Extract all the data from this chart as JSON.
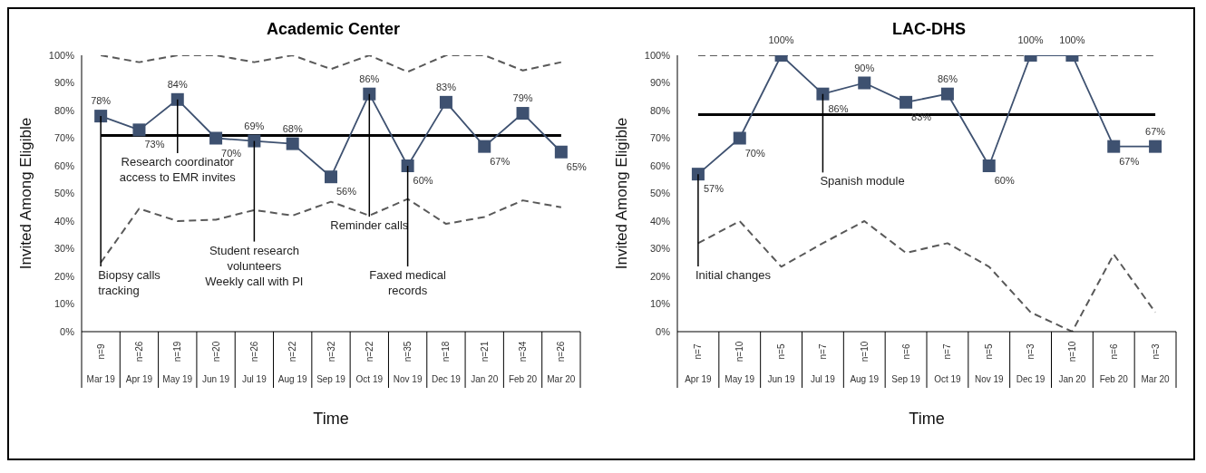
{
  "chart_data": [
    {
      "type": "line",
      "title": "Academic Center",
      "xlabel": "Time",
      "ylabel": "Invited Among Eligible",
      "categories": [
        "n=9\nMar 19",
        "n=26\nApr 19",
        "n=19\nMay 19",
        "n=20\nJun 19",
        "n=26\nJul 19",
        "n=22\nAug 19",
        "n=32\nSep 19",
        "n=22\nOct 19",
        "n=35\nNov 19",
        "n=18\nDec 19",
        "n=21\nJan 20",
        "n=34\nFeb 20",
        "n=26\nMar 20"
      ],
      "series": [
        {
          "color": "#3e5170",
          "marker": "square",
          "line_style": "solid",
          "values": [
            78,
            73,
            84,
            70,
            69,
            68,
            56,
            86,
            60,
            83,
            67,
            79,
            65
          ],
          "value_labels": [
            "78%",
            "73%",
            "84%",
            "70%",
            "69%",
            "68%",
            "56%",
            "86%",
            "60%",
            "83%",
            "67%",
            "79%",
            "65%"
          ]
        },
        {
          "color": "#595959",
          "marker": "none",
          "line_style": "dashed",
          "values": [
            100,
            97.5,
            100,
            100,
            97.5,
            100,
            95,
            100,
            94,
            100,
            100,
            94.5,
            97.5
          ]
        },
        {
          "color": "#595959",
          "marker": "none",
          "line_style": "dashed",
          "values": [
            25,
            44.5,
            40,
            40.5,
            44,
            42,
            47,
            42,
            48,
            39,
            41.5,
            47.5,
            45
          ]
        }
      ],
      "ref_lines": [
        {
          "axis": "y",
          "value": 71,
          "color": "#000000"
        }
      ],
      "ylim": [
        0,
        100
      ],
      "yticks": [
        {
          "value": 0,
          "label": "0%"
        },
        {
          "value": 10,
          "label": "10%"
        },
        {
          "value": 20,
          "label": "20%"
        },
        {
          "value": 30,
          "label": "30%"
        },
        {
          "value": 40,
          "label": "40%"
        },
        {
          "value": 50,
          "label": "50%"
        },
        {
          "value": 60,
          "label": "60%"
        },
        {
          "value": 70,
          "label": "70%"
        },
        {
          "value": 80,
          "label": "80%"
        },
        {
          "value": 90,
          "label": "90%"
        },
        {
          "value": 100,
          "label": "100%"
        }
      ],
      "annotations": [
        {
          "text": "Biopsy calls\ntracking",
          "x": "n=9\nMar 19",
          "y": 78
        },
        {
          "text": "Research coordinator\naccess to EMR invites",
          "x": "n=19\nMay 19",
          "y": 84
        },
        {
          "text": "Student research\nvolunteers\nWeekly call with PI",
          "x": "n=26\nJul 19",
          "y": 69
        },
        {
          "text": "Reminder calls",
          "x": "n=22\nOct 19",
          "y": 86
        },
        {
          "text": "Faxed medical\nrecords",
          "x": "n=35\nNov 19",
          "y": 60
        }
      ]
    },
    {
      "type": "line",
      "title": "LAC-DHS",
      "xlabel": "Time",
      "ylabel": "Invited Among Eligible",
      "categories": [
        "n=7\nApr 19",
        "n=10\nMay 19",
        "n=5\nJun 19",
        "n=7\nJul 19",
        "n=10\nAug 19",
        "n=6\nSep 19",
        "n=7\nOct 19",
        "n=5\nNov 19",
        "n=3\nDec 19",
        "n=10\nJan 20",
        "n=6\nFeb 20",
        "n=3\nMar 20"
      ],
      "series": [
        {
          "color": "#3e5170",
          "marker": "square",
          "line_style": "solid",
          "values": [
            57,
            70,
            100,
            86,
            90,
            83,
            86,
            60,
            100,
            100,
            67,
            67
          ],
          "value_labels": [
            "57%",
            "70%",
            "100%",
            "86%",
            "90%",
            "83%",
            "86%",
            "60%",
            "100%",
            "100%",
            "67%",
            "67%"
          ]
        },
        {
          "color": "#595959",
          "marker": "none",
          "line_style": "dashed",
          "values": [
            100,
            100,
            100,
            100,
            100,
            100,
            100,
            100,
            100,
            100,
            100,
            100
          ]
        },
        {
          "color": "#595959",
          "marker": "none",
          "line_style": "dashed",
          "values": [
            32,
            40,
            23.5,
            32,
            40,
            28.5,
            32,
            23.5,
            7,
            0,
            28,
            7
          ]
        }
      ],
      "ref_lines": [
        {
          "axis": "y",
          "value": 78.5,
          "color": "#000000"
        }
      ],
      "ylim": [
        0,
        100
      ],
      "yticks": [
        {
          "value": 0,
          "label": "0%"
        },
        {
          "value": 10,
          "label": "10%"
        },
        {
          "value": 20,
          "label": "20%"
        },
        {
          "value": 30,
          "label": "30%"
        },
        {
          "value": 40,
          "label": "40%"
        },
        {
          "value": 50,
          "label": "50%"
        },
        {
          "value": 60,
          "label": "60%"
        },
        {
          "value": 70,
          "label": "70%"
        },
        {
          "value": 80,
          "label": "80%"
        },
        {
          "value": 90,
          "label": "90%"
        },
        {
          "value": 100,
          "label": "100%"
        }
      ],
      "annotations": [
        {
          "text": "Initial changes",
          "x": "n=7\nApr 19",
          "y": 57
        },
        {
          "text": "Spanish module",
          "x": "n=7\nJul 19",
          "y": 86
        }
      ]
    }
  ]
}
